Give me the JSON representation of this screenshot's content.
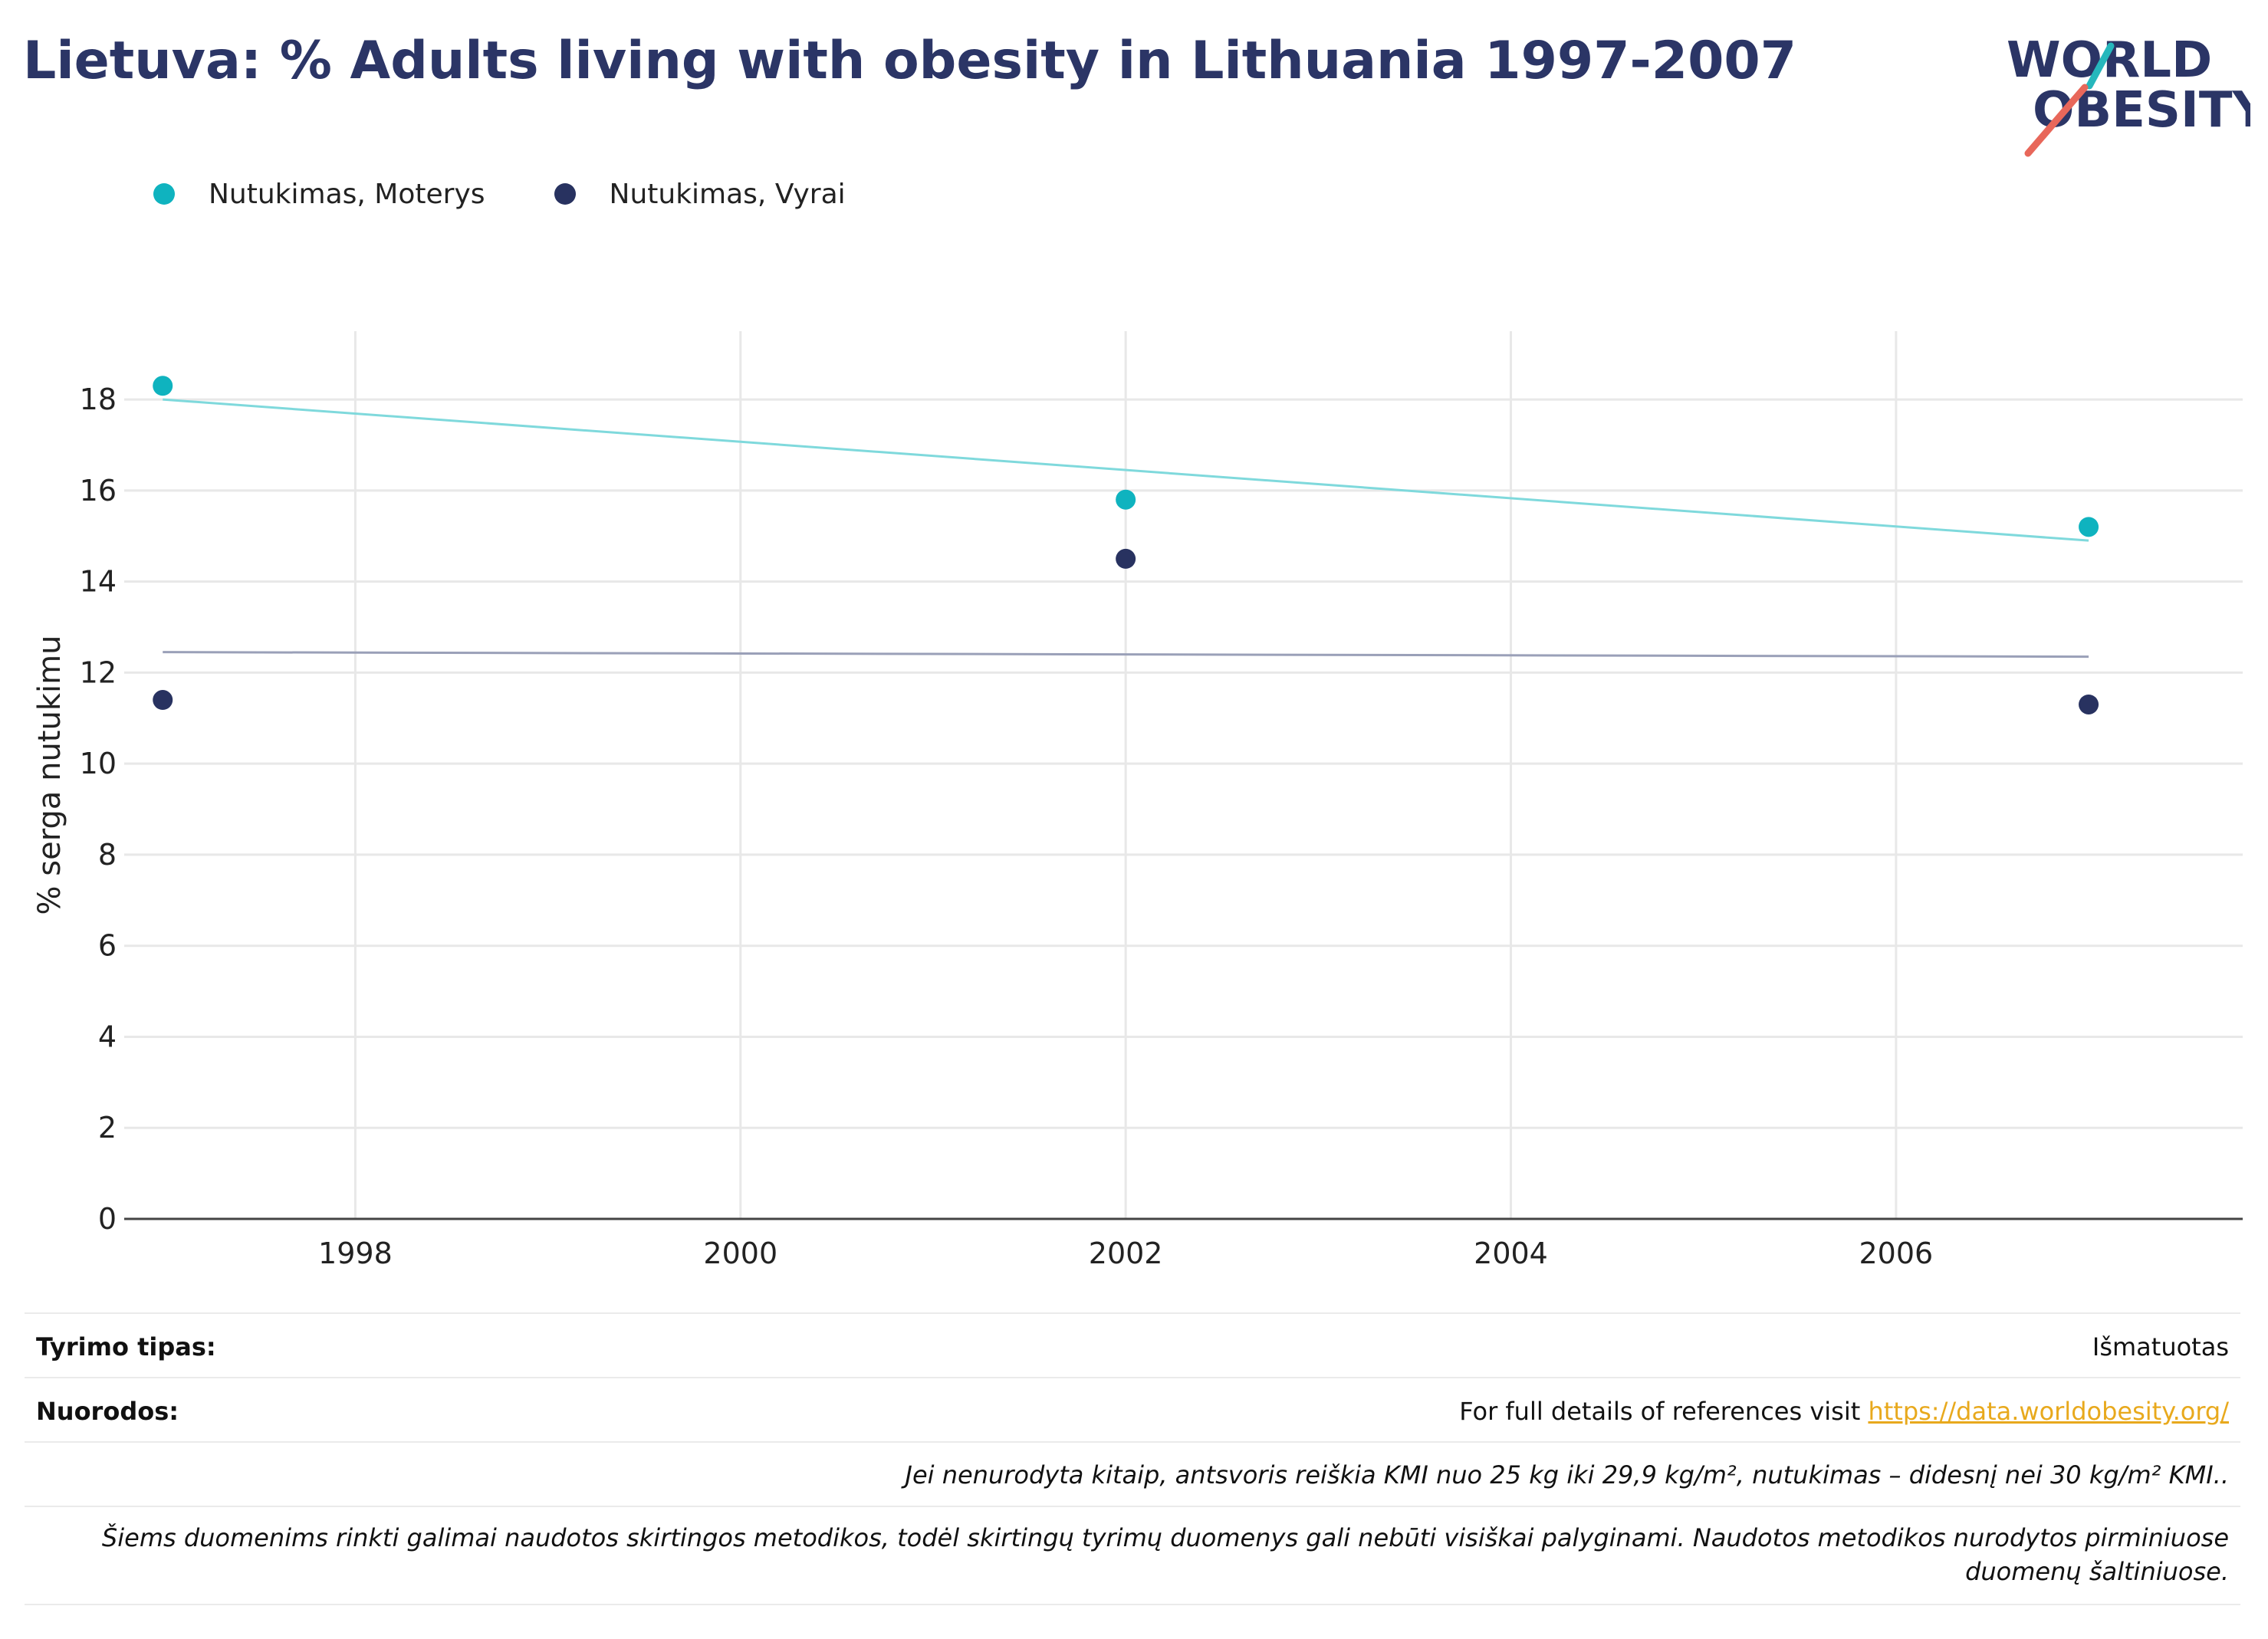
{
  "title": "Lietuva: % Adults living with obesity in Lithuania 1997-2007",
  "logo": {
    "line1": "WORLD",
    "line2": "OBESITY",
    "colors": {
      "text": "#2b3566",
      "teal": "#26b7bc",
      "coral": "#e8675a"
    }
  },
  "colors": {
    "women": "#0fb3bf",
    "men": "#283260",
    "women_trend": "#7fd9dc",
    "men_trend": "#9aa0b8",
    "grid": "#e8e8e8",
    "axis": "#444444",
    "link": "#e8a91d"
  },
  "chart_data": {
    "type": "scatter",
    "title": "Lietuva: % Adults living with obesity in Lithuania 1997-2007",
    "xlabel": "",
    "ylabel": "% serga nutukimu",
    "xlim": [
      1996.8,
      2007.8
    ],
    "ylim": [
      0,
      19.5
    ],
    "x_ticks": [
      1998,
      2000,
      2002,
      2004,
      2006
    ],
    "y_ticks": [
      0,
      2,
      4,
      6,
      8,
      10,
      12,
      14,
      16,
      18
    ],
    "grid": true,
    "legend_position": "top-left",
    "series": [
      {
        "name": "Nutukimas, Moterys",
        "x": [
          1997,
          2002,
          2007
        ],
        "y": [
          18.3,
          15.8,
          15.2
        ],
        "trend": {
          "x": [
            1997,
            2007
          ],
          "y": [
            18.0,
            14.9
          ]
        }
      },
      {
        "name": "Nutukimas, Vyrai",
        "x": [
          1997,
          2002,
          2007
        ],
        "y": [
          11.4,
          14.5,
          11.3
        ],
        "trend": {
          "x": [
            1997,
            2007
          ],
          "y": [
            12.45,
            12.35
          ]
        }
      }
    ]
  },
  "footer": {
    "study_type_label": "Tyrimo tipas:",
    "study_type_value": "Išmatuotas",
    "references_label": "Nuorodos:",
    "references_text": "For full details of references visit ",
    "references_link": "https://data.worldobesity.org/",
    "note_1": "Jei nenurodyta kitaip, antsvoris reiškia KMI nuo 25 kg iki 29,9 kg/m², nutukimas – didesnį nei 30 kg/m² KMI..",
    "note_2": "Šiems duomenims rinkti galimai naudotos skirtingos metodikos, todėl skirtingų tyrimų duomenys gali nebūti visiškai palyginami. Naudotos metodikos nurodytos pirminiuose duomenų šaltiniuose."
  }
}
